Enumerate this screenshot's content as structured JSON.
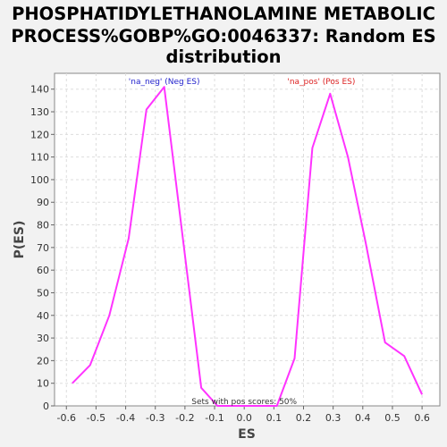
{
  "chart_data": {
    "type": "line",
    "title_lines": [
      "PHOSPHATIDYLETHANOLAMINE METABOLIC",
      "PROCESS%GOBP%GO:0046337: Random ES",
      "distribution"
    ],
    "xlabel": "ES",
    "ylabel": "P(ES)",
    "xlim": [
      -0.64,
      0.66
    ],
    "ylim": [
      0,
      147
    ],
    "x_ticks": [
      -0.6,
      -0.5,
      -0.4,
      -0.3,
      -0.2,
      -0.1,
      0.0,
      0.1,
      0.2,
      0.3,
      0.4,
      0.5,
      0.6
    ],
    "x_tick_labels": [
      "-0.6",
      "-0.5",
      "-0.4",
      "-0.3",
      "-0.2",
      "-0.1",
      "0.0",
      "0.1",
      "0.2",
      "0.3",
      "0.4",
      "0.5",
      "0.6"
    ],
    "y_ticks": [
      0,
      10,
      20,
      30,
      40,
      50,
      60,
      70,
      80,
      90,
      100,
      110,
      120,
      130,
      140
    ],
    "grid": true,
    "series": [
      {
        "color": "#ff33ff",
        "x": [
          -0.58,
          -0.52,
          -0.455,
          -0.39,
          -0.33,
          -0.27,
          -0.145,
          -0.09,
          0.0,
          0.11,
          0.17,
          0.23,
          0.29,
          0.35,
          0.41,
          0.475,
          0.54,
          0.6
        ],
        "y": [
          10,
          18,
          40,
          74,
          131,
          141,
          8,
          0,
          0,
          0,
          21,
          114,
          138,
          110,
          72,
          28,
          22,
          5
        ]
      }
    ],
    "annotations": {
      "neg": {
        "text": "'na_neg' (Neg ES)",
        "color": "#2222cc",
        "x": -0.27
      },
      "pos": {
        "text": "'na_pos' (Pos ES)",
        "color": "#dd2222",
        "x": 0.26
      },
      "pos_scores": {
        "text": "Sets with pos scores: 50%",
        "color": "#333333",
        "x": 0.0
      }
    }
  }
}
